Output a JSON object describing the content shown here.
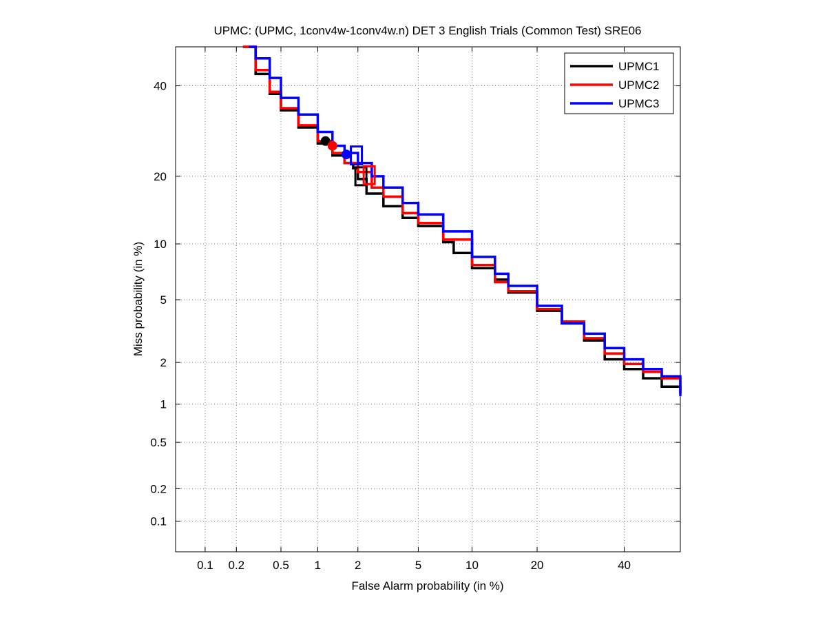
{
  "chart_data": {
    "type": "line",
    "scale": "normal-deviate (DET)",
    "title": "UPMC: (UPMC, 1conv4w-1conv4w.n) DET 3 English Trials (Common Test) SRE06",
    "xlabel": "False Alarm probability (in %)",
    "ylabel": "Miss probability (in %)",
    "xlim": [
      0.05,
      55
    ],
    "ylim": [
      0.05,
      50
    ],
    "xticks": [
      0.1,
      0.2,
      0.5,
      1,
      2,
      5,
      10,
      20,
      40
    ],
    "xtick_labels": [
      "0.1",
      "0.2",
      "0.5",
      "1",
      "2",
      "5",
      "10",
      "20",
      "40"
    ],
    "yticks": [
      0.1,
      0.2,
      0.5,
      1,
      2,
      5,
      10,
      20,
      40
    ],
    "ytick_labels": [
      "0.1",
      "0.2",
      "0.5",
      "1",
      "2",
      "5",
      "10",
      "20",
      "40"
    ],
    "grid": true,
    "legend_position": "top-right",
    "series": [
      {
        "name": "UPMC1",
        "color": "#000000",
        "x": [
          0.23,
          0.3,
          0.4,
          0.5,
          0.7,
          1.0,
          1.3,
          1.6,
          1.85,
          2.0,
          2.3,
          3.0,
          4.0,
          5.0,
          7.0,
          8.0,
          10.0,
          13.0,
          15.0,
          20.0,
          25.0,
          30.0,
          35.0,
          40.0,
          45.0,
          50.0,
          55.0
        ],
        "y": [
          50.0,
          43.0,
          38.0,
          34.0,
          30.0,
          26.5,
          24.0,
          22.5,
          21.5,
          19.5,
          17.0,
          15.0,
          13.3,
          12.2,
          10.2,
          9.0,
          7.5,
          6.5,
          5.5,
          4.3,
          3.6,
          2.8,
          2.1,
          1.8,
          1.55,
          1.35,
          1.2
        ]
      },
      {
        "name": "UPMC2",
        "color": "#ff0000",
        "x": [
          0.23,
          0.3,
          0.4,
          0.5,
          0.7,
          1.0,
          1.3,
          1.6,
          2.0,
          2.5,
          3.0,
          4.0,
          5.0,
          7.0,
          10.0,
          13.0,
          15.0,
          20.0,
          25.0,
          30.0,
          35.0,
          40.0,
          45.0,
          50.0,
          55.0
        ],
        "y": [
          50.0,
          44.0,
          38.5,
          34.5,
          30.5,
          27.0,
          24.5,
          22.5,
          20.8,
          18.0,
          16.5,
          14.0,
          12.6,
          10.5,
          7.8,
          6.3,
          5.6,
          4.4,
          3.7,
          2.9,
          2.3,
          1.95,
          1.72,
          1.55,
          1.25
        ]
      },
      {
        "name": "UPMC3",
        "color": "#0000ff",
        "x": [
          0.26,
          0.3,
          0.4,
          0.5,
          0.7,
          1.0,
          1.3,
          1.6,
          2.0,
          2.5,
          3.0,
          4.0,
          5.0,
          7.0,
          10.0,
          13.0,
          15.0,
          20.0,
          25.0,
          30.0,
          35.0,
          40.0,
          45.0,
          50.0,
          55.0
        ],
        "y": [
          50.0,
          47.0,
          42.0,
          37.0,
          33.0,
          29.0,
          26.0,
          24.5,
          22.5,
          20.0,
          18.0,
          15.5,
          13.8,
          11.5,
          8.6,
          7.0,
          6.0,
          4.6,
          3.6,
          3.1,
          2.5,
          2.1,
          1.8,
          1.6,
          1.15
        ]
      }
    ],
    "markers": [
      {
        "series": "UPMC1",
        "kind": "circle",
        "x": 1.15,
        "y": 27.0
      },
      {
        "series": "UPMC2",
        "kind": "circle",
        "x": 1.3,
        "y": 26.0
      },
      {
        "series": "UPMC3",
        "kind": "circle",
        "x": 1.65,
        "y": 24.2
      },
      {
        "series": "UPMC1",
        "kind": "square",
        "x": 2.1,
        "y": 20.0
      },
      {
        "series": "UPMC2",
        "kind": "square",
        "x": 2.4,
        "y": 20.2
      },
      {
        "series": "UPMC3",
        "kind": "square",
        "x": 1.95,
        "y": 24.0
      }
    ]
  }
}
